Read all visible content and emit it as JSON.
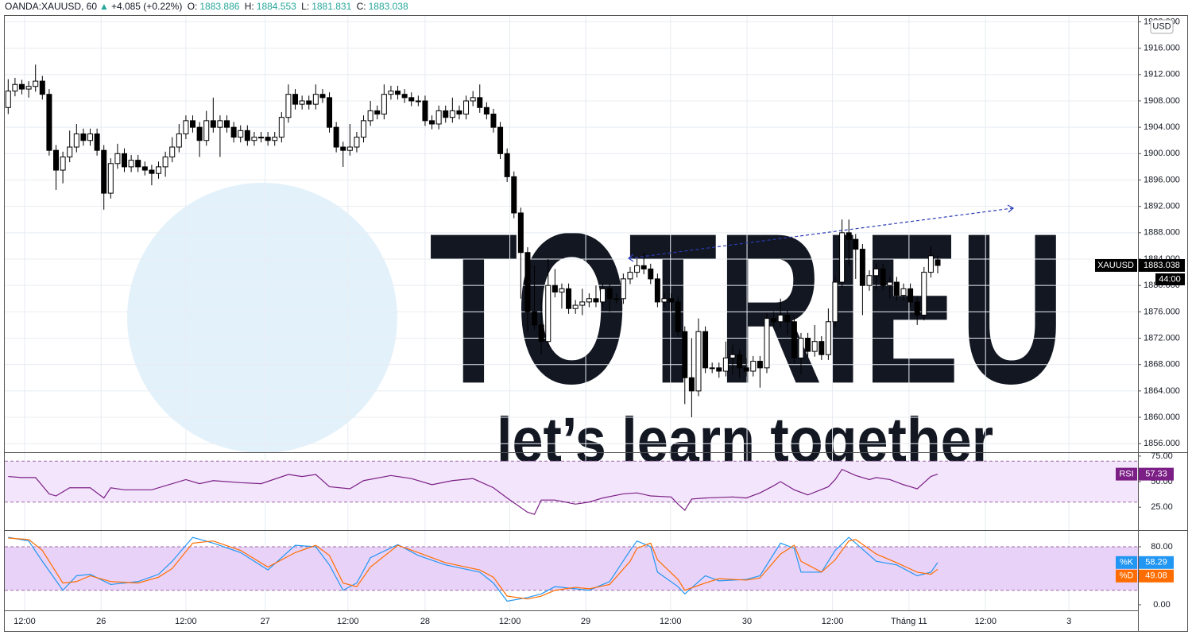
{
  "header": {
    "symbol": "OANDA:XAUUSD, 60",
    "change": "+4.085 (+0.22%)",
    "o_label": "O:",
    "h_label": "H:",
    "l_label": "L:",
    "c_label": "C:"
  },
  "watermark": {
    "brand": "TOTRIEU",
    "slogan": "let’s learn together"
  },
  "chart_data": [
    {
      "type": "candlestick",
      "symbol": "XAUUSD",
      "currency": "USD",
      "countdown": "44:00",
      "up_color": "#ffffff",
      "down_color": "#000000",
      "border_color": "#000000",
      "grid": true,
      "xlim": [
        -0.5,
        165.3
      ],
      "xticks": [
        {
          "value": 2.4,
          "label": "12:00"
        },
        {
          "value": 13.6,
          "label": "26"
        },
        {
          "value": 26,
          "label": "12:00"
        },
        {
          "value": 37.6,
          "label": "27"
        },
        {
          "value": 49.7,
          "label": "12:00"
        },
        {
          "value": 61,
          "label": "28"
        },
        {
          "value": 73.4,
          "label": "12:00"
        },
        {
          "value": 84.5,
          "label": "29"
        },
        {
          "value": 96.9,
          "label": "12:00"
        },
        {
          "value": 108.1,
          "label": "30"
        },
        {
          "value": 120.6,
          "label": "12:00"
        },
        {
          "value": 131.8,
          "label": "Tháng 11"
        },
        {
          "value": 143,
          "label": "12:00"
        },
        {
          "value": 155.2,
          "label": "3"
        }
      ],
      "ylim": [
        1854.7,
        1920.9
      ],
      "yticks": [
        {
          "value": 1856,
          "label": "1856.000"
        },
        {
          "value": 1860,
          "label": "1860.000"
        },
        {
          "value": 1864,
          "label": "1864.000"
        },
        {
          "value": 1868,
          "label": "1868.000"
        },
        {
          "value": 1872,
          "label": "1872.000"
        },
        {
          "value": 1876,
          "label": "1876.000"
        },
        {
          "value": 1880,
          "label": "1880.000"
        },
        {
          "value": 1884,
          "label": "1884.000"
        },
        {
          "value": 1888,
          "label": "1888.000"
        },
        {
          "value": 1892,
          "label": "1892.000"
        },
        {
          "value": 1896,
          "label": "1896.000"
        },
        {
          "value": 1900,
          "label": "1900.000"
        },
        {
          "value": 1904,
          "label": "1904.000"
        },
        {
          "value": 1908,
          "label": "1908.000"
        },
        {
          "value": 1912,
          "label": "1912.000"
        },
        {
          "value": 1916,
          "label": "1916.000"
        },
        {
          "value": 1920,
          "label": "1920.000"
        }
      ],
      "open": [
        1907,
        1909.5,
        1910.5,
        1909.8,
        1910.2,
        1911,
        1909,
        1900.5,
        1897.5,
        1899.5,
        1901,
        1903,
        1902,
        1903,
        1900.5,
        1894,
        1898.5,
        1900,
        1898,
        1899,
        1898,
        1897.5,
        1897,
        1898,
        1899.5,
        1901,
        1903,
        1905,
        1904,
        1902,
        1905,
        1904,
        1905,
        1904,
        1902.5,
        1903.5,
        1902,
        1902.5,
        1902.5,
        1902,
        1902.5,
        1905.5,
        1909,
        1907.5,
        1908,
        1907.5,
        1909,
        1908.5,
        1904,
        1901,
        1900.5,
        1901,
        1902.5,
        1905,
        1906.5,
        1906,
        1909,
        1909.5,
        1909,
        1908.5,
        1908,
        1908,
        1905,
        1904.5,
        1906.5,
        1905.5,
        1906.5,
        1906,
        1908,
        1908.5,
        1907,
        1906,
        1904,
        1900,
        1896.5,
        1891,
        1885,
        1876,
        1874,
        1871.5,
        1880,
        1879,
        1879.5,
        1876.5,
        1877,
        1877.5,
        1878,
        1877.5,
        1879.5,
        1878,
        1878,
        1881,
        1882,
        1883,
        1882.5,
        1881,
        1877.5,
        1878,
        1877.5,
        1873,
        1866,
        1864,
        1873,
        1867.5,
        1867.5,
        1867,
        1869,
        1869.5,
        1867.5,
        1867,
        1868.5,
        1867.5,
        1875,
        1874.5,
        1875.5,
        1874.5,
        1869,
        1872,
        1870,
        1871.5,
        1869.5,
        1874.5,
        1880.5,
        1888,
        1887,
        1885.5,
        1880,
        1881.5,
        1882.5,
        1880,
        1880.5,
        1878.5,
        1879.5,
        1877.5,
        1875.5,
        1882,
        1883.886
      ],
      "high": [
        1911.3,
        1911.5,
        1911.2,
        1911.0,
        1913.5,
        1911.8,
        1909.8,
        1901.3,
        1900.3,
        1903.5,
        1904.5,
        1903.8,
        1903.8,
        1903.8,
        1901.3,
        1899.3,
        1901.5,
        1900.8,
        1899.8,
        1899.8,
        1898.8,
        1898.3,
        1898.8,
        1900.3,
        1902.5,
        1904.5,
        1905.8,
        1905.8,
        1904.8,
        1906.5,
        1908.5,
        1905.8,
        1905.8,
        1904.8,
        1904.3,
        1904.3,
        1903.3,
        1903.3,
        1903.3,
        1903.3,
        1906.3,
        1910.5,
        1909.8,
        1908.8,
        1908.8,
        1910.5,
        1909.8,
        1909.3,
        1904.8,
        1901.8,
        1904.5,
        1903.3,
        1905.8,
        1908.0,
        1907.3,
        1910.5,
        1910.3,
        1910.3,
        1909.8,
        1909.3,
        1908.8,
        1908.8,
        1905.8,
        1907.3,
        1907.3,
        1908.5,
        1907.3,
        1908.8,
        1909.5,
        1910.5,
        1907.8,
        1906.8,
        1904.8,
        1900.8,
        1897.3,
        1891.8,
        1885.8,
        1883.0,
        1878.0,
        1884.0,
        1882.5,
        1880.3,
        1880.3,
        1877.8,
        1879.5,
        1878.8,
        1880.0,
        1880.3,
        1880.3,
        1878.8,
        1881.8,
        1882.8,
        1884.0,
        1885.0,
        1883.3,
        1881.8,
        1878.8,
        1878.8,
        1878.3,
        1873.8,
        1872.0,
        1875.0,
        1873.8,
        1868.3,
        1868.3,
        1871.5,
        1871.0,
        1870.3,
        1869.0,
        1869.3,
        1869.3,
        1875.8,
        1876.0,
        1878.0,
        1876.3,
        1875.3,
        1872.8,
        1872.8,
        1874.0,
        1872.3,
        1876.5,
        1881.3,
        1890.0,
        1890.0,
        1887.8,
        1886.3,
        1882.3,
        1883.3,
        1883.3,
        1881.3,
        1881.3,
        1880.3,
        1880.3,
        1878.3,
        1882.8,
        1886.0,
        1884.553
      ],
      "low": [
        1906.0,
        1908.7,
        1909.0,
        1908.5,
        1909.4,
        1908.2,
        1899.7,
        1894.5,
        1895.5,
        1898.7,
        1900.2,
        1901.2,
        1901.2,
        1899.7,
        1891.5,
        1893.2,
        1897.7,
        1897.2,
        1897.2,
        1897.2,
        1896.7,
        1895.2,
        1896.2,
        1896.5,
        1898.7,
        1900.2,
        1902.2,
        1903.2,
        1899.5,
        1901.2,
        1903.2,
        1899.5,
        1903.2,
        1901.7,
        1901.7,
        1901.2,
        1901.2,
        1901.7,
        1901.2,
        1901.2,
        1901.7,
        1904.7,
        1906.7,
        1906.7,
        1906.7,
        1906.7,
        1907.7,
        1903.2,
        1900.2,
        1898.0,
        1899.7,
        1900.2,
        1901.7,
        1904.2,
        1905.2,
        1905.2,
        1908.2,
        1908.2,
        1907.7,
        1907.2,
        1907.2,
        1904.2,
        1903.7,
        1903.7,
        1904.7,
        1904.7,
        1905.2,
        1905.2,
        1907.2,
        1906.2,
        1905.2,
        1903.2,
        1899.2,
        1895.7,
        1890.2,
        1878.0,
        1873.0,
        1873.2,
        1869.5,
        1870.7,
        1878.2,
        1876.5,
        1875.7,
        1875.7,
        1875.5,
        1876.7,
        1876.7,
        1876.7,
        1876.0,
        1877.2,
        1877.2,
        1880.2,
        1881.2,
        1881.7,
        1880.2,
        1876.7,
        1876.7,
        1876.0,
        1872.2,
        1862.0,
        1860.0,
        1863.2,
        1866.7,
        1866.7,
        1866.0,
        1866.2,
        1866.5,
        1866.0,
        1866.2,
        1866.2,
        1864.5,
        1866.7,
        1873.7,
        1873.7,
        1872.5,
        1868.2,
        1866.5,
        1869.2,
        1869.2,
        1868.7,
        1868.7,
        1873.7,
        1879.7,
        1883.0,
        1881.0,
        1875.5,
        1879.2,
        1879.5,
        1879.2,
        1878.0,
        1877.7,
        1877.7,
        1876.7,
        1874.0,
        1874.7,
        1881.2,
        1881.831
      ],
      "close": [
        1909.5,
        1910.5,
        1909.8,
        1910.2,
        1911,
        1909,
        1900.5,
        1897.5,
        1899.5,
        1901,
        1903,
        1902,
        1903,
        1900.5,
        1894,
        1898.5,
        1900,
        1898,
        1899,
        1898,
        1897.5,
        1897,
        1898,
        1899.5,
        1901,
        1903,
        1905,
        1904,
        1902,
        1905,
        1904,
        1905,
        1904,
        1902.5,
        1903.5,
        1902,
        1902.5,
        1902.5,
        1902,
        1902.5,
        1905.5,
        1909,
        1907.5,
        1908,
        1907.5,
        1909,
        1908.5,
        1904,
        1901,
        1900.5,
        1901,
        1902.5,
        1905,
        1906.5,
        1906,
        1909,
        1909.5,
        1909,
        1908.5,
        1908,
        1908,
        1905,
        1904.5,
        1906.5,
        1905.5,
        1906.5,
        1906,
        1908,
        1908.5,
        1907,
        1906,
        1904,
        1900,
        1896.5,
        1891,
        1885,
        1876,
        1874,
        1871.5,
        1880,
        1879,
        1879.5,
        1876.5,
        1877,
        1877.5,
        1878,
        1877.5,
        1879.5,
        1878,
        1878,
        1881,
        1882,
        1883,
        1882.5,
        1881,
        1877.5,
        1878,
        1877.5,
        1873,
        1866,
        1864,
        1873,
        1867.5,
        1867.5,
        1867,
        1869,
        1869.5,
        1867.5,
        1867,
        1868.5,
        1867.5,
        1875,
        1874.5,
        1875.5,
        1874.5,
        1869,
        1872,
        1870,
        1871.5,
        1869.5,
        1874.5,
        1880.5,
        1888,
        1887,
        1885.5,
        1880,
        1881.5,
        1882.5,
        1880,
        1880.5,
        1878.5,
        1879.5,
        1877.5,
        1875.5,
        1882,
        1884.5,
        1883.038
      ]
    },
    {
      "type": "line",
      "ylim": [
        2.6,
        78
      ],
      "yticks": [
        {
          "value": 25,
          "label": "25.00"
        },
        {
          "value": 50,
          "label": "50.00"
        },
        {
          "value": 75,
          "label": "75.00"
        }
      ],
      "bands": [
        30,
        70
      ],
      "band_color": "#f3e5fb",
      "x": [
        0,
        2,
        4,
        6,
        7,
        9,
        12,
        14,
        15,
        17,
        21,
        26,
        28,
        30,
        34,
        37,
        41,
        43,
        45,
        47,
        50,
        52,
        56,
        59,
        62,
        65,
        68,
        71,
        73,
        76,
        77,
        78,
        80,
        83,
        85,
        87,
        90,
        92,
        94,
        97,
        98,
        99,
        100,
        102,
        106,
        108,
        110,
        112,
        113,
        115,
        117,
        120,
        121,
        122,
        124,
        126,
        127,
        129,
        131,
        133,
        135,
        136
      ],
      "series": [
        {
          "name": "RSI",
          "color": "#7b1f86",
          "values": [
            55,
            54,
            54,
            38,
            36,
            44,
            44,
            34,
            44,
            42,
            42,
            52,
            48,
            51,
            49,
            48,
            57,
            55,
            57,
            45,
            43,
            51,
            56,
            53,
            47,
            51,
            53,
            44,
            34,
            20,
            18,
            32,
            32,
            28,
            30,
            34,
            38,
            39,
            36,
            35,
            28,
            22,
            33,
            34,
            35,
            34,
            39,
            46,
            50,
            42,
            37,
            45,
            52,
            62,
            56,
            52,
            54,
            52,
            47,
            43,
            55,
            57.33
          ]
        }
      ]
    },
    {
      "type": "line",
      "ylim": [
        -7.7,
        101.9
      ],
      "yticks": [
        {
          "value": 0,
          "label": "0.00"
        },
        {
          "value": 80,
          "label": "80.00"
        }
      ],
      "bands": [
        20,
        80
      ],
      "band_color": "#e9d2f7",
      "x": [
        0,
        3,
        5,
        8,
        10,
        12,
        15,
        19,
        22,
        24,
        27,
        30,
        34,
        38,
        42,
        45,
        47,
        49,
        51,
        53,
        57,
        60,
        64,
        69,
        71,
        73,
        76,
        78,
        80,
        83,
        85,
        88,
        91,
        92,
        94,
        95,
        98,
        99,
        102,
        104,
        108,
        110,
        113,
        115,
        116,
        119,
        121,
        123,
        124,
        127,
        130,
        133,
        135,
        136
      ],
      "series": [
        {
          "name": "%K",
          "color": "#2196f3",
          "values": [
            93,
            88,
            60,
            20,
            40,
            42,
            28,
            32,
            42,
            60,
            93,
            85,
            72,
            48,
            82,
            80,
            55,
            20,
            30,
            65,
            83,
            68,
            55,
            45,
            30,
            5,
            10,
            15,
            25,
            22,
            20,
            32,
            75,
            88,
            80,
            45,
            25,
            15,
            40,
            33,
            35,
            40,
            85,
            78,
            45,
            45,
            75,
            93,
            85,
            60,
            55,
            40,
            45,
            58.29
          ]
        },
        {
          "name": "%D",
          "color": "#ff6d00",
          "values": [
            92,
            90,
            75,
            30,
            32,
            40,
            32,
            30,
            38,
            50,
            85,
            88,
            75,
            52,
            72,
            82,
            68,
            30,
            25,
            52,
            82,
            72,
            58,
            48,
            38,
            12,
            8,
            12,
            20,
            24,
            22,
            28,
            60,
            78,
            85,
            62,
            35,
            20,
            30,
            36,
            34,
            37,
            70,
            82,
            60,
            45,
            62,
            88,
            90,
            70,
            58,
            45,
            42,
            49.08
          ]
        }
      ]
    }
  ]
}
